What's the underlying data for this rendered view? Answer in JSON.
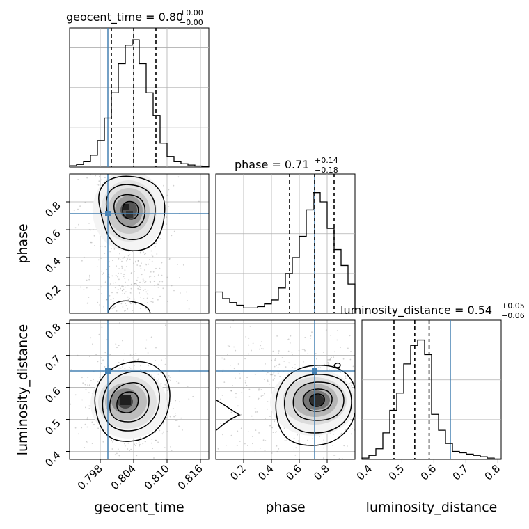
{
  "colors": {
    "truth": "#4682b4",
    "hist": "#000000",
    "grid": "#b0b0b0",
    "scatter": "#9a9a9a"
  },
  "titles": {
    "geocent_time": {
      "text": "geocent_time = 0.80",
      "plus": "+0.00",
      "minus": "−0.00"
    },
    "phase": {
      "text": "phase = 0.71",
      "plus": "+0.14",
      "minus": "−0.18"
    },
    "luminosity_distance": {
      "text": "luminosity_distance = 0.54",
      "plus": "+0.05",
      "minus": "−0.06"
    }
  },
  "axis_labels": {
    "geocent_time": "geocent_time",
    "phase": "phase",
    "luminosity_distance": "luminosity_distance"
  },
  "chart_data": {
    "type": "corner",
    "parameters": [
      "geocent_time",
      "phase",
      "luminosity_distance"
    ],
    "truths": {
      "geocent_time": 0.7985,
      "phase": 0.71,
      "luminosity_distance": 0.645
    },
    "quantiles": {
      "geocent_time": [
        0.8,
        0.804,
        0.808
      ],
      "phase": [
        0.53,
        0.71,
        0.85
      ],
      "luminosity_distance": [
        0.475,
        0.54,
        0.585
      ]
    },
    "ranges": {
      "geocent_time": [
        0.7925,
        0.8175
      ],
      "phase": [
        0.0,
        1.0
      ],
      "luminosity_distance": [
        0.375,
        0.81
      ]
    },
    "ticks": {
      "geocent_time": [
        "0.798",
        "0.804",
        "0.810",
        "0.816"
      ],
      "phase_x": [
        "0.2",
        "0.4",
        "0.6",
        "0.8"
      ],
      "phase_y": [
        "0.2",
        "0.4",
        "0.6",
        "0.8"
      ],
      "luminosity_distance_x": [
        "0.4",
        "0.5",
        "0.6",
        "0.7",
        "0.8"
      ],
      "luminosity_distance_y": [
        "0.4",
        "0.5",
        "0.6",
        "0.7",
        "0.8"
      ]
    },
    "histograms": {
      "geocent_time": {
        "edges": [
          0.7925,
          0.79375,
          0.795,
          0.79625,
          0.7975,
          0.79875,
          0.8,
          0.80125,
          0.8025,
          0.80375,
          0.805,
          0.80625,
          0.8075,
          0.80875,
          0.81,
          0.81125,
          0.8125,
          0.81375,
          0.815,
          0.81625,
          0.8175
        ],
        "counts": [
          0.01,
          0.02,
          0.04,
          0.09,
          0.2,
          0.37,
          0.56,
          0.78,
          0.92,
          0.96,
          0.78,
          0.56,
          0.39,
          0.18,
          0.08,
          0.04,
          0.025,
          0.015,
          0.008,
          0.003
        ]
      },
      "phase": {
        "edges": [
          0.0,
          0.05,
          0.1,
          0.15,
          0.2,
          0.25,
          0.3,
          0.35,
          0.4,
          0.45,
          0.5,
          0.55,
          0.6,
          0.65,
          0.7,
          0.75,
          0.8,
          0.85,
          0.9,
          0.95,
          1.0
        ],
        "counts": [
          0.16,
          0.11,
          0.08,
          0.06,
          0.04,
          0.04,
          0.05,
          0.07,
          0.1,
          0.19,
          0.3,
          0.42,
          0.58,
          0.78,
          0.91,
          0.84,
          0.64,
          0.48,
          0.36,
          0.22
        ]
      },
      "luminosity_distance": {
        "edges": [
          0.375,
          0.39675,
          0.4185,
          0.44025,
          0.462,
          0.48375,
          0.5055,
          0.52725,
          0.549,
          0.57075,
          0.5925,
          0.61425,
          0.636,
          0.65775,
          0.6795,
          0.70125,
          0.723,
          0.74475,
          0.7665,
          0.78825,
          0.81
        ],
        "counts": [
          0.01,
          0.03,
          0.08,
          0.2,
          0.37,
          0.5,
          0.72,
          0.86,
          0.9,
          0.79,
          0.34,
          0.22,
          0.12,
          0.06,
          0.05,
          0.04,
          0.03,
          0.02,
          0.01,
          0.003
        ]
      }
    }
  }
}
